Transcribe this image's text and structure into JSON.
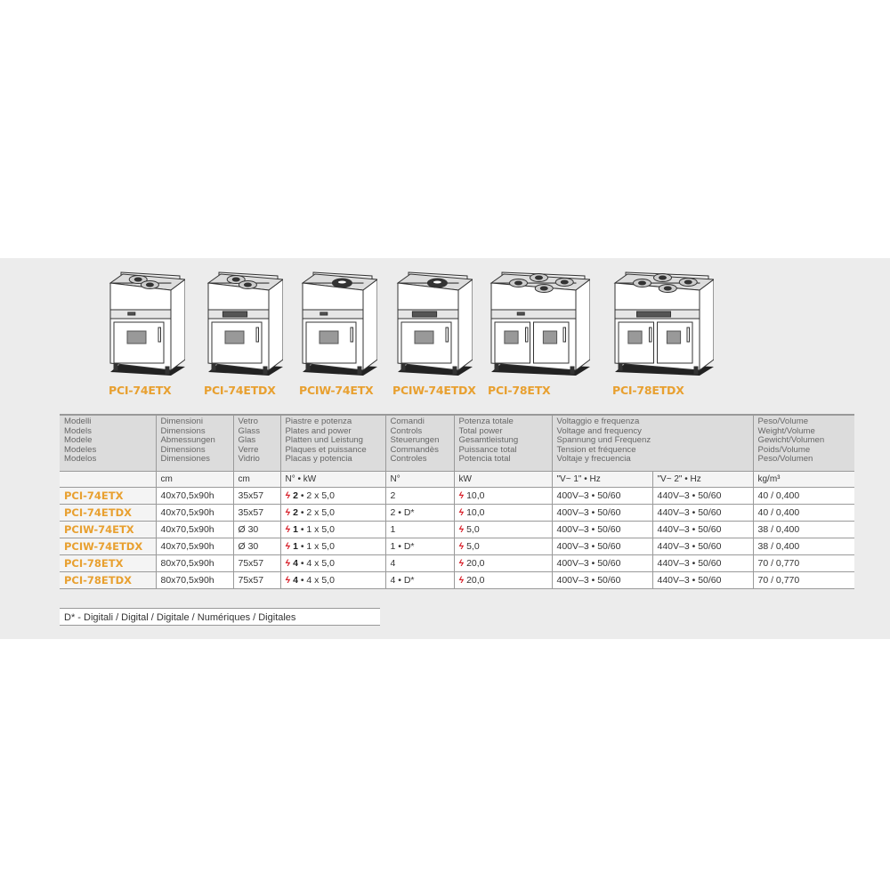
{
  "colors": {
    "accent_orange": "#e8a030",
    "bolt_red": "#d8202a",
    "band": "#ececec",
    "header_bg": "#dcdcdc"
  },
  "products": [
    {
      "label": "PCI-74ETX",
      "burners": 2,
      "burner_type": "ring",
      "digital": false,
      "wide": false
    },
    {
      "label": "PCI-74ETDX",
      "burners": 2,
      "burner_type": "ring",
      "digital": true,
      "wide": false
    },
    {
      "label": "PCIW-74ETX",
      "burners": 1,
      "burner_type": "wok",
      "digital": false,
      "wide": false
    },
    {
      "label": "PCIW-74ETDX",
      "burners": 1,
      "burner_type": "wok",
      "digital": true,
      "wide": false
    },
    {
      "label": "PCI-78ETX",
      "burners": 4,
      "burner_type": "ring",
      "digital": false,
      "wide": true
    },
    {
      "label": "PCI-78ETDX",
      "burners": 4,
      "burner_type": "ring",
      "digital": true,
      "wide": true
    }
  ],
  "table": {
    "headers": [
      [
        "Modelli",
        "Models",
        "Modele",
        "Modeles",
        "Modelos"
      ],
      [
        "Dimensioni",
        "Dimensions",
        "Abmessungen",
        "Dimensions",
        "Dimensiones"
      ],
      [
        "Vetro",
        "Glass",
        "Glas",
        "Verre",
        "Vidrio"
      ],
      [
        "Piastre e potenza",
        "Plates and power",
        "Platten und Leistung",
        "Plaques et puissance",
        "Placas y potencia"
      ],
      [
        "Comandi",
        "Controls",
        "Steuerungen",
        "Commandès",
        "Controles"
      ],
      [
        "Potenza totale",
        "Total power",
        "Gesamtleistung",
        "Puissance total",
        "Potencia total"
      ],
      [
        "Voltaggio e frequenza",
        "Voltage and frequency",
        "Spannung und Frequenz",
        "Tension et fréquence",
        "Voltaje y frecuencia"
      ],
      [
        "Peso/Volume",
        "Weight/Volume",
        "Gewicht/Volumen",
        "Poids/Volume",
        "Peso/Volumen"
      ]
    ],
    "units": [
      "",
      "cm",
      "cm",
      "N° • kW",
      "N°",
      "kW",
      "\"V~ 1\" • Hz",
      "\"V~ 2\" • Hz",
      "kg/m³"
    ],
    "rows": [
      {
        "model": "PCI-74ETX",
        "dim": "40x70,5x90h",
        "glass": "35x57",
        "plates_n": "2",
        "plates_kw": " • 2 x 5,0",
        "controls": "2",
        "power": "10,0",
        "v1": "400V–3 • 50/60",
        "v2": "440V–3 • 50/60",
        "weight": "40 / 0,400"
      },
      {
        "model": "PCI-74ETDX",
        "dim": "40x70,5x90h",
        "glass": "35x57",
        "plates_n": "2",
        "plates_kw": " • 2 x 5,0",
        "controls": "2 • D*",
        "power": "10,0",
        "v1": "400V–3 • 50/60",
        "v2": "440V–3 • 50/60",
        "weight": "40 / 0,400"
      },
      {
        "model": "PCIW-74ETX",
        "dim": "40x70,5x90h",
        "glass": "Ø 30",
        "plates_n": "1",
        "plates_kw": " • 1 x 5,0",
        "controls": "1",
        "power": "5,0",
        "v1": "400V–3 • 50/60",
        "v2": "440V–3 • 50/60",
        "weight": "38 / 0,400"
      },
      {
        "model": "PCIW-74ETDX",
        "dim": "40x70,5x90h",
        "glass": "Ø 30",
        "plates_n": "1",
        "plates_kw": " • 1 x 5,0",
        "controls": "1 • D*",
        "power": "5,0",
        "v1": "400V–3 • 50/60",
        "v2": "440V–3 • 50/60",
        "weight": "38 / 0,400"
      },
      {
        "model": "PCI-78ETX",
        "dim": "80x70,5x90h",
        "glass": "75x57",
        "plates_n": "4",
        "plates_kw": " • 4 x 5,0",
        "controls": "4",
        "power": "20,0",
        "v1": "400V–3 • 50/60",
        "v2": "440V–3 • 50/60",
        "weight": "70 / 0,770"
      },
      {
        "model": "PCI-78ETDX",
        "dim": "80x70,5x90h",
        "glass": "75x57",
        "plates_n": "4",
        "plates_kw": " • 4 x 5,0",
        "controls": "4 • D*",
        "power": "20,0",
        "v1": "400V–3 • 50/60",
        "v2": "440V–3 • 50/60",
        "weight": "70 / 0,770"
      }
    ]
  },
  "footnote": "D* - Digitali / Digital / Digitale / Numériques / Digitales",
  "icons": {
    "power": "lightning-bolt-icon"
  }
}
